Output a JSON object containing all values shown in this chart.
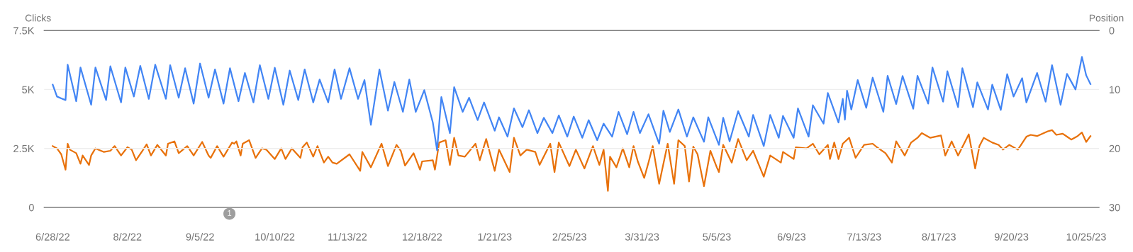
{
  "chart_data": {
    "type": "line",
    "ylabel": "Clicks",
    "y2label": "Position",
    "xlim": [
      "2022-06-24",
      "2023-10-31"
    ],
    "xticks": [
      {
        "value": "2022-06-28",
        "label": "6/28/22"
      },
      {
        "value": "2022-08-02",
        "label": "8/2/22"
      },
      {
        "value": "2022-09-05",
        "label": "9/5/22"
      },
      {
        "value": "2022-10-10",
        "label": "10/10/22"
      },
      {
        "value": "2022-11-13",
        "label": "11/13/22"
      },
      {
        "value": "2022-12-18",
        "label": "12/18/22"
      },
      {
        "value": "2023-01-21",
        "label": "1/21/23"
      },
      {
        "value": "2023-02-25",
        "label": "2/25/23"
      },
      {
        "value": "2023-03-31",
        "label": "3/31/23"
      },
      {
        "value": "2023-05-05",
        "label": "5/5/23"
      },
      {
        "value": "2023-06-09",
        "label": "6/9/23"
      },
      {
        "value": "2023-07-13",
        "label": "7/13/23"
      },
      {
        "value": "2023-08-17",
        "label": "8/17/23"
      },
      {
        "value": "2023-09-20",
        "label": "9/20/23"
      },
      {
        "value": "2023-10-25",
        "label": "10/25/23"
      }
    ],
    "ylim": [
      0,
      7500
    ],
    "yticks": [
      0,
      {
        "value": 2500,
        "label": "2.5K"
      },
      {
        "value": 5000,
        "label": "5K"
      },
      {
        "value": 7500,
        "label": "7.5K"
      }
    ],
    "y2lim": [
      30,
      0
    ],
    "y2ticks": [
      0,
      10,
      20,
      30
    ],
    "grid": "y",
    "marker": "none",
    "line_style": "solid",
    "annotations": [
      "1"
    ],
    "series": [
      {
        "color": "#4285f4",
        "x": [
          "2022-06-28",
          "2022-06-30",
          "2022-07-02",
          "2022-07-04",
          "2022-07-05",
          "2022-07-09",
          "2022-07-11",
          "2022-07-16",
          "2022-07-18",
          "2022-07-23",
          "2022-07-25",
          "2022-07-30",
          "2022-08-01",
          "2022-08-05",
          "2022-08-08",
          "2022-08-12",
          "2022-08-15",
          "2022-08-20",
          "2022-08-22",
          "2022-08-26",
          "2022-08-29",
          "2022-09-02",
          "2022-09-05",
          "2022-09-09",
          "2022-09-12",
          "2022-09-16",
          "2022-09-19",
          "2022-09-23",
          "2022-09-26",
          "2022-09-30",
          "2022-10-03",
          "2022-10-07",
          "2022-10-10",
          "2022-10-14",
          "2022-10-17",
          "2022-10-21",
          "2022-10-24",
          "2022-10-28",
          "2022-10-31",
          "2022-11-04",
          "2022-11-07",
          "2022-11-10",
          "2022-11-14",
          "2022-11-18",
          "2022-11-21",
          "2022-11-24",
          "2022-11-28",
          "2022-12-02",
          "2022-12-05",
          "2022-12-09",
          "2022-12-12",
          "2022-12-15",
          "2022-12-19",
          "2022-12-23",
          "2022-12-25",
          "2022-12-27",
          "2022-12-31",
          "2023-01-02",
          "2023-01-06",
          "2023-01-09",
          "2023-01-13",
          "2023-01-16",
          "2023-01-21",
          "2023-01-23",
          "2023-01-27",
          "2023-01-30",
          "2023-02-03",
          "2023-02-06",
          "2023-02-10",
          "2023-02-13",
          "2023-02-17",
          "2023-02-20",
          "2023-02-24",
          "2023-02-27",
          "2023-03-03",
          "2023-03-06",
          "2023-03-10",
          "2023-03-13",
          "2023-03-17",
          "2023-03-20",
          "2023-03-24",
          "2023-03-27",
          "2023-03-30",
          "2023-04-03",
          "2023-04-08",
          "2023-04-10",
          "2023-04-13",
          "2023-04-17",
          "2023-04-21",
          "2023-04-24",
          "2023-04-29",
          "2023-05-01",
          "2023-05-06",
          "2023-05-08",
          "2023-05-11",
          "2023-05-15",
          "2023-05-20",
          "2023-05-22",
          "2023-05-27",
          "2023-05-30",
          "2023-06-03",
          "2023-06-05",
          "2023-06-10",
          "2023-06-12",
          "2023-06-17",
          "2023-06-19",
          "2023-06-24",
          "2023-06-26",
          "2023-07-01",
          "2023-07-03",
          "2023-07-04",
          "2023-07-05",
          "2023-07-07",
          "2023-07-10",
          "2023-07-14",
          "2023-07-17",
          "2023-07-22",
          "2023-07-24",
          "2023-07-28",
          "2023-07-31",
          "2023-08-05",
          "2023-08-07",
          "2023-08-12",
          "2023-08-14",
          "2023-08-19",
          "2023-08-21",
          "2023-08-26",
          "2023-08-28",
          "2023-09-02",
          "2023-09-04",
          "2023-09-09",
          "2023-09-11",
          "2023-09-15",
          "2023-09-18",
          "2023-09-21",
          "2023-09-25",
          "2023-09-27",
          "2023-10-02",
          "2023-10-06",
          "2023-10-09",
          "2023-10-13",
          "2023-10-16",
          "2023-10-20",
          "2023-10-23",
          "2023-10-25",
          "2023-10-27"
        ],
        "values": [
          5200,
          4700,
          4620,
          4550,
          6050,
          4500,
          5930,
          4350,
          5930,
          4550,
          5980,
          4450,
          5930,
          4700,
          6000,
          4600,
          6050,
          4600,
          6030,
          4650,
          5900,
          4400,
          6100,
          4650,
          5850,
          4400,
          5900,
          4500,
          5700,
          4450,
          6030,
          4600,
          5920,
          4350,
          5800,
          4550,
          5850,
          4450,
          5420,
          4450,
          5850,
          4600,
          5900,
          4600,
          5400,
          3500,
          5850,
          4100,
          5320,
          4050,
          5420,
          4050,
          4970,
          3600,
          2420,
          4680,
          3150,
          5100,
          4050,
          4650,
          3700,
          4450,
          3250,
          3820,
          3000,
          4200,
          3400,
          4120,
          3150,
          3800,
          3150,
          3900,
          3000,
          3850,
          2950,
          3700,
          2850,
          3550,
          3000,
          4050,
          3100,
          4050,
          3150,
          3950,
          2700,
          4100,
          3200,
          4150,
          3000,
          3820,
          2780,
          3820,
          2650,
          3800,
          2800,
          4080,
          3000,
          3920,
          2600,
          3920,
          2950,
          3880,
          2950,
          4200,
          3000,
          4330,
          3550,
          4850,
          3600,
          4600,
          3720,
          4950,
          4150,
          5400,
          4220,
          5500,
          4050,
          5580,
          4380,
          5570,
          4180,
          5580,
          4400,
          5930,
          4480,
          5770,
          4250,
          5900,
          4250,
          5300,
          4150,
          5200,
          4130,
          5650,
          4700,
          5480,
          4450,
          5700,
          4480,
          6030,
          4350,
          5660,
          5000,
          6380,
          5600,
          5230
        ]
      },
      {
        "color": "#e8710a",
        "axis": "y2",
        "x": [
          "2022-06-28",
          "2022-06-30",
          "2022-07-02",
          "2022-07-04",
          "2022-07-05",
          "2022-07-06",
          "2022-07-09",
          "2022-07-11",
          "2022-07-12",
          "2022-07-15",
          "2022-07-16",
          "2022-07-18",
          "2022-07-22",
          "2022-07-25",
          "2022-07-27",
          "2022-07-30",
          "2022-08-02",
          "2022-08-04",
          "2022-08-06",
          "2022-08-09",
          "2022-08-11",
          "2022-08-13",
          "2022-08-16",
          "2022-08-20",
          "2022-08-21",
          "2022-08-24",
          "2022-08-26",
          "2022-08-30",
          "2022-09-02",
          "2022-09-06",
          "2022-09-09",
          "2022-09-10",
          "2022-09-13",
          "2022-09-16",
          "2022-09-20",
          "2022-09-21",
          "2022-09-22",
          "2022-09-24",
          "2022-09-25",
          "2022-09-28",
          "2022-10-01",
          "2022-10-04",
          "2022-10-06",
          "2022-10-10",
          "2022-10-13",
          "2022-10-15",
          "2022-10-18",
          "2022-10-22",
          "2022-10-23",
          "2022-10-25",
          "2022-10-28",
          "2022-10-30",
          "2022-11-02",
          "2022-11-04",
          "2022-11-06",
          "2022-11-08",
          "2022-11-14",
          "2022-11-19",
          "2022-11-20",
          "2022-11-24",
          "2022-11-29",
          "2022-12-02",
          "2022-12-06",
          "2022-12-08",
          "2022-12-10",
          "2022-12-14",
          "2022-12-17",
          "2022-12-18",
          "2022-12-23",
          "2022-12-24",
          "2022-12-26",
          "2022-12-29",
          "2022-12-31",
          "2023-01-02",
          "2023-01-04",
          "2023-01-07",
          "2023-01-12",
          "2023-01-14",
          "2023-01-17",
          "2023-01-21",
          "2023-01-23",
          "2023-01-28",
          "2023-01-30",
          "2023-02-02",
          "2023-02-05",
          "2023-02-09",
          "2023-02-11",
          "2023-02-16",
          "2023-02-18",
          "2023-02-20",
          "2023-02-25",
          "2023-02-28",
          "2023-03-04",
          "2023-03-08",
          "2023-03-11",
          "2023-03-13",
          "2023-03-15",
          "2023-03-16",
          "2023-03-19",
          "2023-03-22",
          "2023-03-25",
          "2023-03-27",
          "2023-03-29",
          "2023-04-01",
          "2023-04-03",
          "2023-04-05",
          "2023-04-08",
          "2023-04-12",
          "2023-04-15",
          "2023-04-17",
          "2023-04-20",
          "2023-04-22",
          "2023-04-24",
          "2023-04-26",
          "2023-04-29",
          "2023-05-02",
          "2023-05-05",
          "2023-05-06",
          "2023-05-08",
          "2023-05-12",
          "2023-05-15",
          "2023-05-19",
          "2023-05-22",
          "2023-05-27",
          "2023-05-30",
          "2023-06-04",
          "2023-06-05",
          "2023-06-10",
          "2023-06-11",
          "2023-06-16",
          "2023-06-19",
          "2023-06-22",
          "2023-06-26",
          "2023-06-27",
          "2023-06-29",
          "2023-07-01",
          "2023-07-03",
          "2023-07-06",
          "2023-07-09",
          "2023-07-13",
          "2023-07-17",
          "2023-07-19",
          "2023-07-23",
          "2023-07-26",
          "2023-07-28",
          "2023-08-01",
          "2023-08-04",
          "2023-08-07",
          "2023-08-09",
          "2023-08-13",
          "2023-08-18",
          "2023-08-20",
          "2023-08-23",
          "2023-08-26",
          "2023-08-31",
          "2023-09-03",
          "2023-09-05",
          "2023-09-07",
          "2023-09-11",
          "2023-09-14",
          "2023-09-16",
          "2023-09-19",
          "2023-09-23",
          "2023-09-27",
          "2023-09-29",
          "2023-10-02",
          "2023-10-07",
          "2023-10-09",
          "2023-10-11",
          "2023-10-14",
          "2023-10-16",
          "2023-10-18",
          "2023-10-21",
          "2023-10-23",
          "2023-10-25",
          "2023-10-27"
        ],
        "values": [
          19.6,
          20.0,
          21.0,
          23.6,
          19.2,
          20.2,
          20.8,
          22.6,
          21.2,
          22.8,
          21.2,
          20.0,
          20.6,
          20.4,
          19.6,
          21.2,
          19.8,
          20.2,
          22.0,
          20.4,
          19.3,
          21.2,
          19.4,
          21.2,
          19.2,
          18.8,
          20.8,
          19.6,
          21.2,
          18.9,
          21.2,
          21.6,
          19.6,
          21.4,
          19.0,
          19.2,
          18.8,
          21.2,
          19.2,
          18.6,
          21.6,
          20.0,
          20.2,
          21.8,
          20.0,
          21.8,
          20.0,
          21.6,
          19.8,
          19.0,
          21.4,
          19.6,
          22.4,
          21.4,
          22.4,
          22.6,
          21.0,
          23.8,
          20.6,
          23.2,
          19.2,
          23.0,
          19.4,
          20.4,
          22.9,
          20.8,
          23.6,
          22.2,
          22.0,
          23.6,
          19.0,
          18.6,
          22.8,
          18.2,
          21.2,
          21.4,
          19.2,
          22.0,
          18.4,
          23.8,
          20.2,
          24.0,
          18.2,
          21.2,
          20.2,
          20.6,
          22.8,
          19.2,
          24.0,
          19.0,
          23.0,
          20.2,
          23.4,
          19.6,
          22.8,
          20.2,
          27.2,
          21.4,
          23.2,
          20.0,
          23.2,
          19.6,
          22.2,
          25.0,
          22.4,
          19.6,
          26.0,
          19.2,
          26.0,
          18.6,
          19.6,
          25.6,
          19.7,
          21.0,
          26.4,
          20.4,
          23.2,
          24.0,
          19.4,
          22.4,
          18.4,
          22.0,
          20.4,
          24.8,
          21.2,
          22.4,
          20.6,
          21.8,
          19.8,
          20.0,
          19.2,
          21.0,
          19.4,
          21.8,
          19.0,
          21.8,
          19.2,
          18.2,
          21.6,
          19.4,
          19.2,
          19.8,
          20.8,
          22.4,
          18.8,
          21.2,
          19.0,
          18.2,
          17.4,
          18.2,
          17.8,
          21.2,
          18.8,
          21.2,
          17.6,
          23.4,
          19.6,
          18.2,
          19.0,
          19.4,
          20.2,
          19.4,
          20.2,
          18.0,
          17.7,
          17.9,
          17.1,
          16.9,
          17.7,
          17.5,
          18.0,
          18.5,
          17.9,
          17.3,
          18.9,
          17.9
        ]
      }
    ]
  }
}
